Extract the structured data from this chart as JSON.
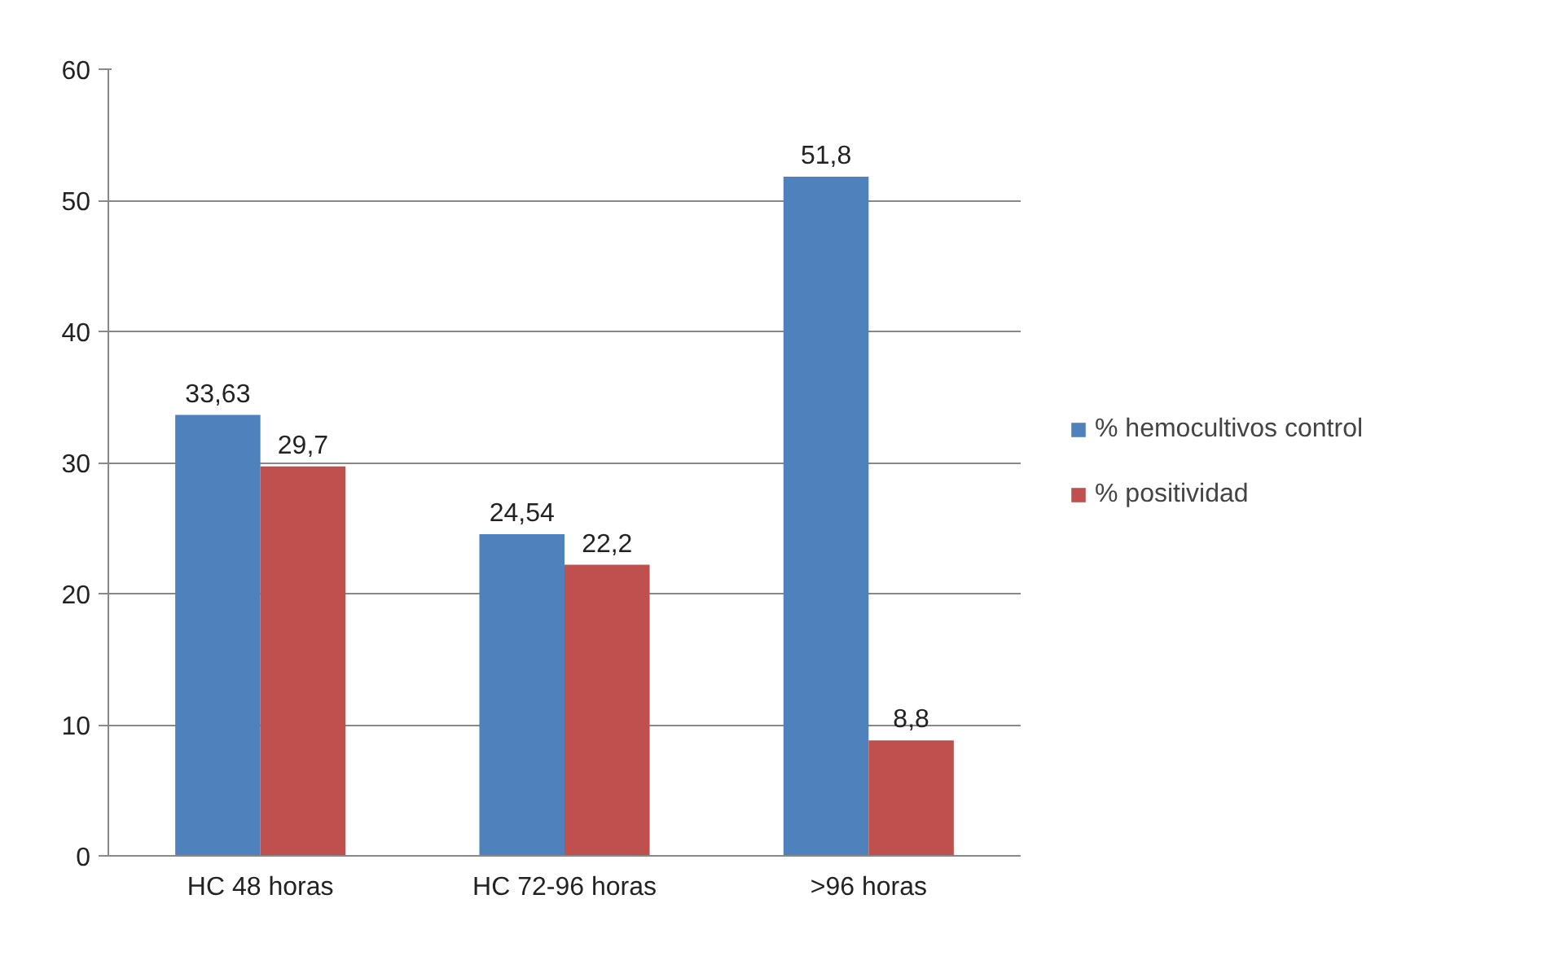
{
  "chart_data": {
    "type": "bar",
    "categories": [
      "HC 48 horas",
      "HC 72-96 horas",
      ">96 horas"
    ],
    "series": [
      {
        "name": "% hemocultivos control",
        "color": "#4f81bd",
        "values": [
          33.63,
          24.54,
          51.8
        ],
        "value_labels": [
          "33,63",
          "24,54",
          "51,8"
        ]
      },
      {
        "name": "% positividad",
        "color": "#c0504d",
        "values": [
          29.7,
          22.2,
          8.8
        ],
        "value_labels": [
          "29,7",
          "22,2",
          "8,8"
        ]
      }
    ],
    "ylim": [
      0,
      60
    ],
    "yticks": [
      0,
      10,
      20,
      30,
      40,
      50,
      60
    ],
    "grid": "y",
    "legend": "right"
  }
}
